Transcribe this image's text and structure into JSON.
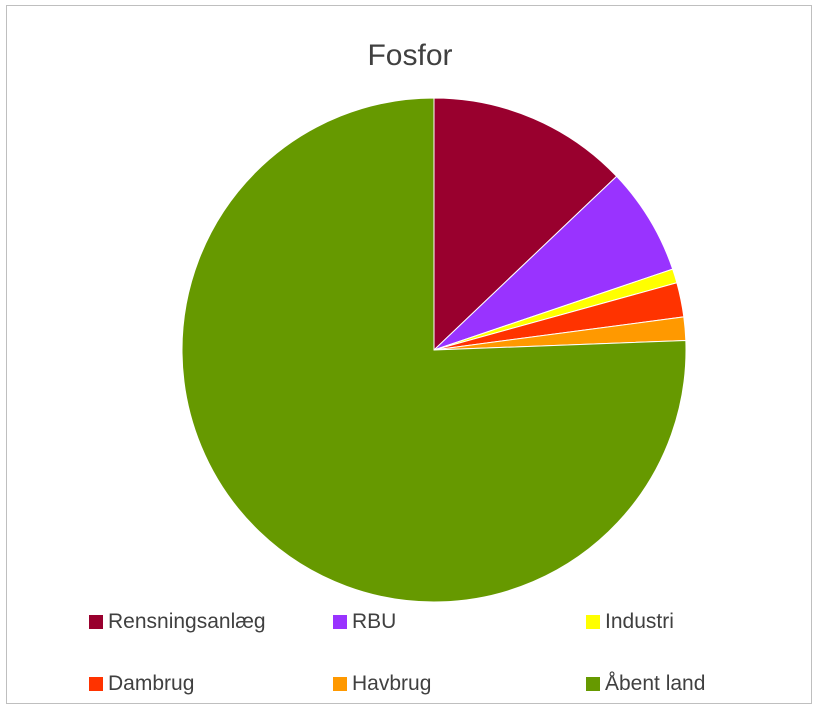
{
  "chart_data": {
    "type": "pie",
    "title": "Fosfor",
    "legend_position": "bottom",
    "slices": [
      {
        "label": "Rensningsanlæg",
        "value": 12.9,
        "color": "#99002E"
      },
      {
        "label": "RBU",
        "value": 6.9,
        "color": "#9933FF"
      },
      {
        "label": "Industri",
        "value": 0.9,
        "color": "#FFFF00"
      },
      {
        "label": "Dambrug",
        "value": 2.2,
        "color": "#FF3300"
      },
      {
        "label": "Havbrug",
        "value": 1.5,
        "color": "#FF9900"
      },
      {
        "label": "Åbent land",
        "value": 75.6,
        "color": "#669900"
      }
    ]
  }
}
